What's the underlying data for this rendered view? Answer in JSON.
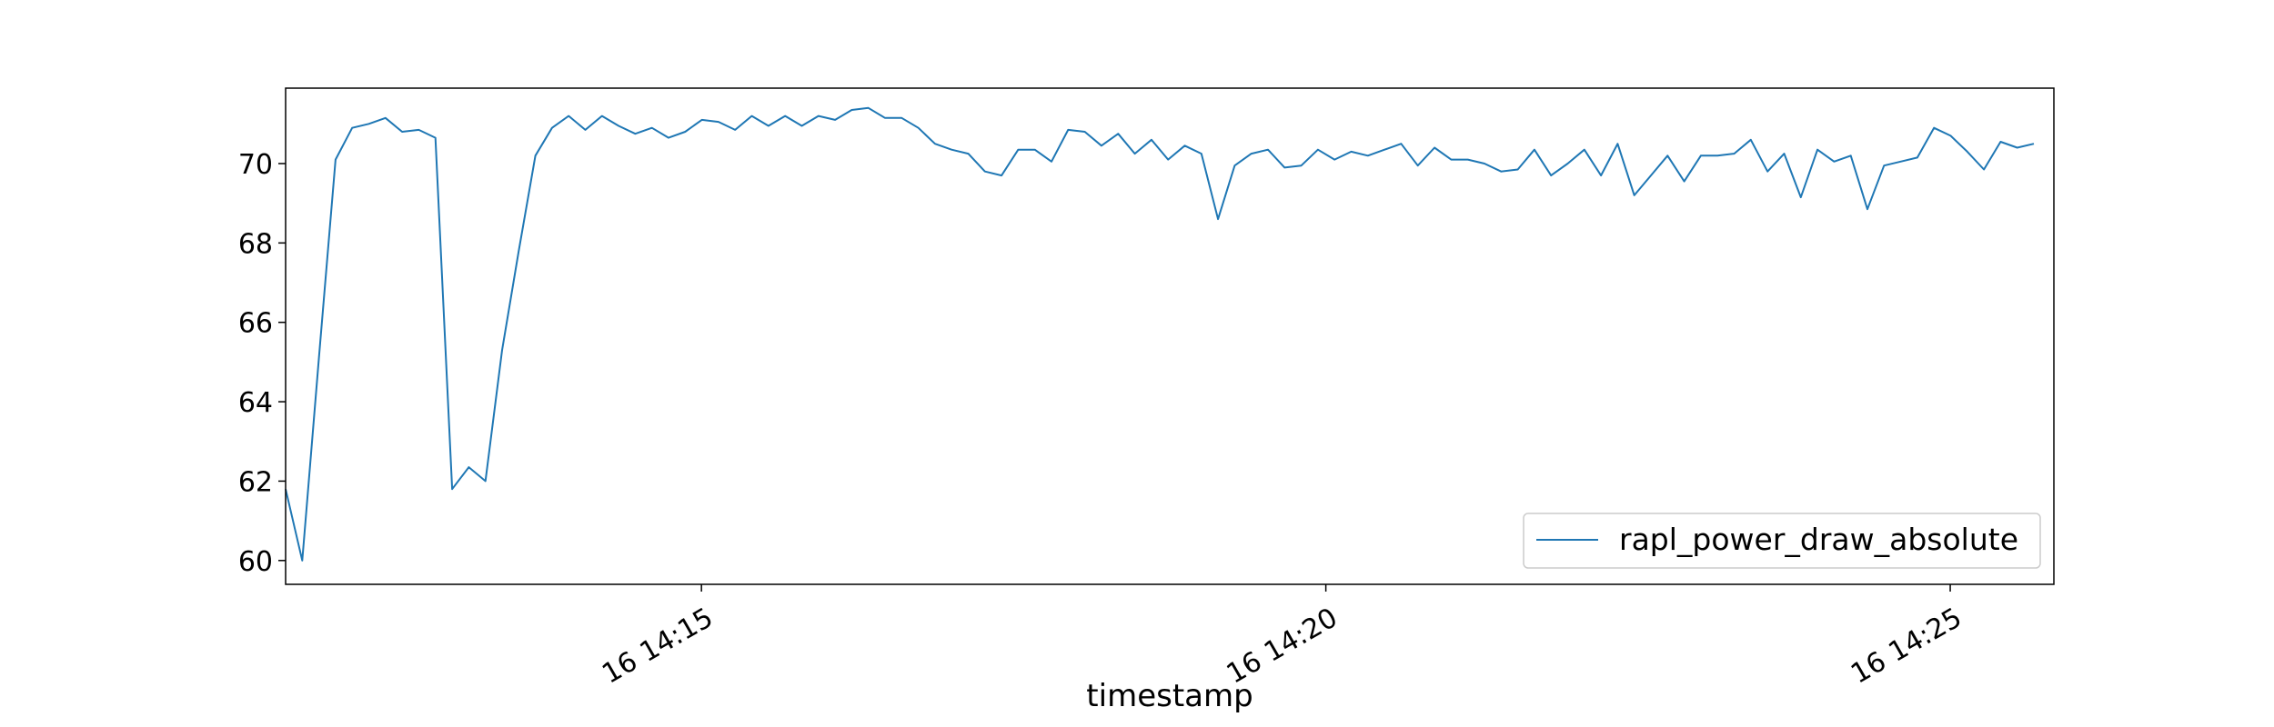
{
  "chart_data": {
    "type": "line",
    "title": "",
    "xlabel": "timestamp",
    "ylabel": "",
    "x_tick_labels": [
      "16 14:15",
      "16 14:20",
      "16 14:25"
    ],
    "x_ticks_minutes": [
      15,
      20,
      25
    ],
    "y_ticks": [
      60,
      62,
      64,
      66,
      68,
      70
    ],
    "ylim": [
      59.4,
      71.9
    ],
    "x_range_minutes": [
      11.67,
      25.83
    ],
    "x_unit": "minutes past 14:00 on day 16",
    "grid": false,
    "legend_position": "lower right",
    "series": [
      {
        "name": "rapl_power_draw_absolute",
        "color": "#1f77b4",
        "x_start_minutes": 11.67,
        "x_step_seconds": 8,
        "values": [
          61.8,
          60.0,
          65.1,
          70.1,
          70.9,
          71.0,
          71.15,
          70.8,
          70.85,
          70.65,
          61.8,
          62.35,
          62.0,
          65.3,
          67.8,
          70.2,
          70.9,
          71.2,
          70.85,
          71.2,
          70.95,
          70.75,
          70.9,
          70.65,
          70.8,
          71.1,
          71.05,
          70.85,
          71.2,
          70.95,
          71.2,
          70.95,
          71.2,
          71.1,
          71.35,
          71.4,
          71.15,
          71.15,
          70.9,
          70.5,
          70.35,
          70.25,
          69.8,
          69.7,
          70.35,
          70.35,
          70.05,
          70.85,
          70.8,
          70.45,
          70.75,
          70.25,
          70.6,
          70.1,
          70.45,
          70.25,
          68.6,
          69.95,
          70.25,
          70.35,
          69.9,
          69.95,
          70.35,
          70.1,
          70.3,
          70.2,
          70.35,
          70.5,
          69.95,
          70.4,
          70.1,
          70.1,
          70.0,
          69.8,
          69.85,
          70.35,
          69.7,
          70.0,
          70.35,
          69.7,
          70.5,
          69.2,
          69.7,
          70.2,
          69.55,
          70.2,
          70.2,
          70.25,
          70.6,
          69.8,
          70.25,
          69.15,
          70.35,
          70.05,
          70.2,
          68.85,
          69.95,
          70.05,
          70.15,
          70.9,
          70.7,
          70.3,
          69.85,
          70.55,
          70.4,
          70.5
        ]
      }
    ]
  }
}
